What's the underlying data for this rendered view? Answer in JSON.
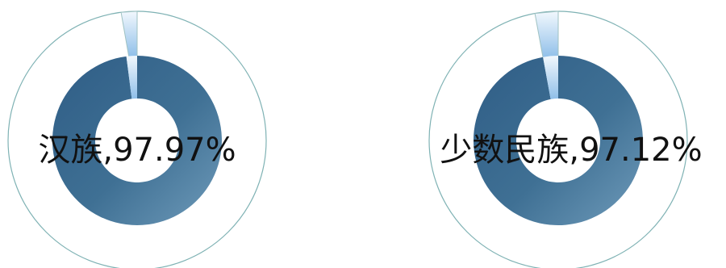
{
  "chart_data": [
    {
      "type": "pie",
      "variant": "donut",
      "label": "汉族,97.97%",
      "slices": [
        {
          "value": 97.97,
          "color": "#3f7094"
        },
        {
          "value": 2.03,
          "color": "#9cc9ee"
        }
      ],
      "outer_ring_color": "#7fb2b4"
    },
    {
      "type": "pie",
      "variant": "donut",
      "label": "少数民族,97.12%",
      "slices": [
        {
          "value": 97.12,
          "color": "#3f7094"
        },
        {
          "value": 2.88,
          "color": "#9cc9ee"
        }
      ],
      "outer_ring_color": "#7fb2b4"
    }
  ]
}
